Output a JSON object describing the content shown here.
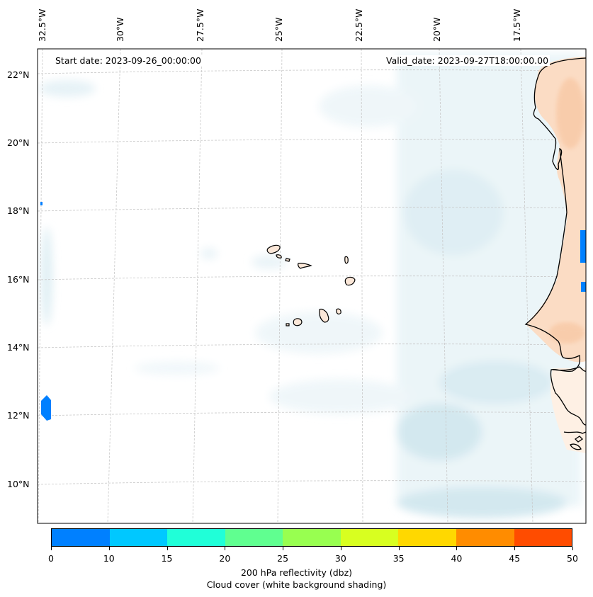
{
  "map": {
    "start_label": "Start date: 2023-09-26_00:00:00",
    "valid_label": "Valid_date: 2023-09-27T18:00:00.00",
    "lon_labels": [
      "32.5°W",
      "30°W",
      "27.5°W",
      "25°W",
      "22.5°W",
      "20°W",
      "17.5°W"
    ],
    "lat_labels": [
      "22°N",
      "20°N",
      "18°N",
      "16°N",
      "14°N",
      "12°N",
      "10°N"
    ],
    "colors": {
      "coast": "#000000",
      "land_fill": "#fde3cf",
      "land_fill_strong": "#f9c9a6",
      "cloud_light": "#e6f3f8",
      "cloud_mid": "#c9e4ee",
      "grid": "#bbbbbb",
      "reflectivity_blue": "#0080ff"
    }
  },
  "colorbar": {
    "ticks": [
      "0",
      "10",
      "15",
      "20",
      "25",
      "30",
      "35",
      "40",
      "45",
      "50"
    ],
    "colors": [
      "#0080ff",
      "#00c8ff",
      "#20ffd8",
      "#60ff90",
      "#98ff50",
      "#d8ff20",
      "#ffd800",
      "#ff8c00",
      "#ff4c00"
    ],
    "title_line1": "200 hPa reflectivity (dbz)",
    "title_line2": "Cloud cover (white background shading)"
  }
}
